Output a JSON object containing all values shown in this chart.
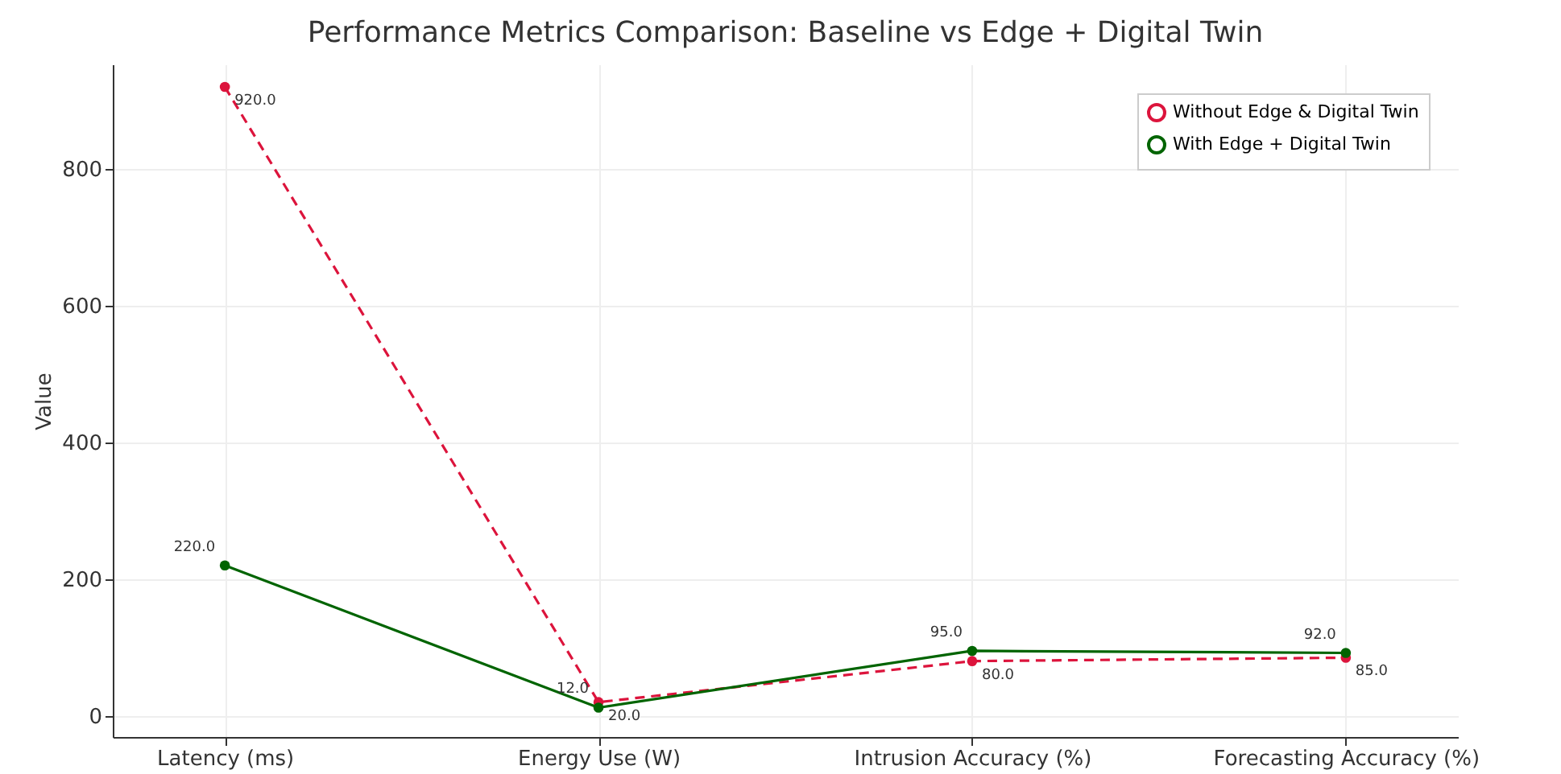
{
  "chart_data": {
    "type": "line",
    "title": "Performance Metrics Comparison: Baseline vs Edge + Digital Twin",
    "ylabel": "Value",
    "categories": [
      "Latency (ms)",
      "Energy Use (W)",
      "Intrusion Accuracy (%)",
      "Forecasting Accuracy (%)"
    ],
    "series": [
      {
        "name": "Without Edge & Digital Twin",
        "color": "#dc143c",
        "line_style": "dashed",
        "values": [
          920.0,
          20.0,
          80.0,
          85.0
        ],
        "value_labels": [
          "920.0",
          "20.0",
          "80.0",
          "85.0"
        ]
      },
      {
        "name": "With Edge + Digital Twin",
        "color": "#006400",
        "line_style": "solid",
        "values": [
          220.0,
          12.0,
          95.0,
          92.0
        ],
        "value_labels": [
          "220.0",
          "12.0",
          "95.0",
          "92.0"
        ]
      }
    ],
    "ylim": [
      -31,
      953
    ],
    "yticks": [
      0,
      200,
      400,
      600,
      800
    ],
    "grid": true,
    "legend": "top right",
    "marker": "circle"
  }
}
